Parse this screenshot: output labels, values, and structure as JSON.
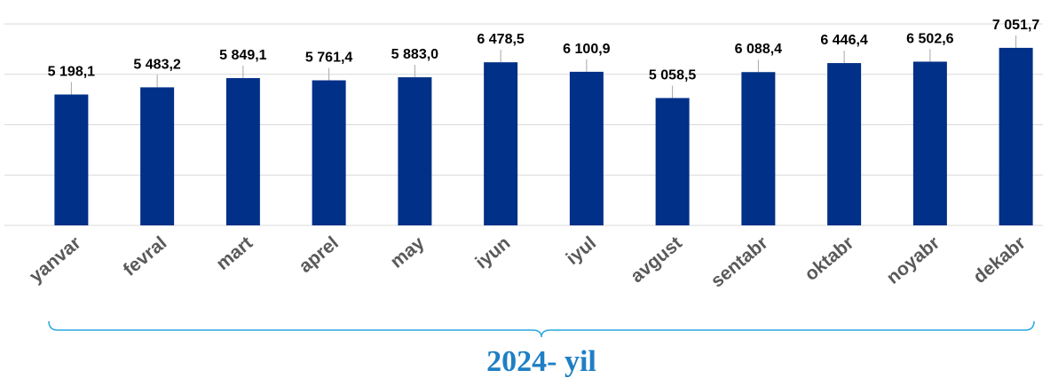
{
  "chart_data": {
    "type": "bar",
    "categories": [
      "yanvar",
      "fevral",
      "mart",
      "aprel",
      "may",
      "iyun",
      "iyul",
      "avgust",
      "sentabr",
      "oktabr",
      "noyabr",
      "dekabr"
    ],
    "values": [
      5198.1,
      5483.2,
      5849.1,
      5761.4,
      5883.0,
      6478.5,
      6100.9,
      5058.5,
      6088.4,
      6446.4,
      6502.6,
      7051.7
    ],
    "value_labels": [
      "5 198,1",
      "5 483,2",
      "5 849,1",
      "5 761,4",
      "5 883,0",
      "6 478,5",
      "6 100,9",
      "5 058,5",
      "6 088,4",
      "6 446,4",
      "6 502,6",
      "7 051,7"
    ],
    "color": "#003087",
    "ylim": [
      0,
      8000
    ],
    "yticks": [
      0,
      2000,
      4000,
      6000,
      8000
    ],
    "grid": true,
    "annotation": "2024- yil"
  }
}
